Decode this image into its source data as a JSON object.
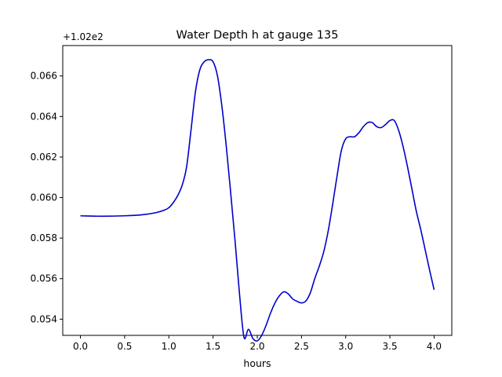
{
  "chart_data": {
    "type": "line",
    "title": "Water Depth h at gauge 135",
    "xlabel": "hours",
    "ylabel": "",
    "offset_label": "+1.02e2",
    "xlim": [
      -0.2,
      4.2
    ],
    "ylim": [
      0.0532,
      0.0675
    ],
    "x_ticks": [
      0.0,
      0.5,
      1.0,
      1.5,
      2.0,
      2.5,
      3.0,
      3.5,
      4.0
    ],
    "x_tick_labels": [
      "0.0",
      "0.5",
      "1.0",
      "1.5",
      "2.0",
      "2.5",
      "3.0",
      "3.5",
      "4.0"
    ],
    "y_ticks": [
      0.054,
      0.056,
      0.058,
      0.06,
      0.062,
      0.064,
      0.066
    ],
    "y_tick_labels": [
      "0.054",
      "0.056",
      "0.058",
      "0.060",
      "0.062",
      "0.064",
      "0.066"
    ],
    "grid": false,
    "legend": "none",
    "series": [
      {
        "color": "#0000cc",
        "x": [
          0.0,
          0.25,
          0.5,
          0.7,
          0.85,
          0.95,
          1.0,
          1.05,
          1.1,
          1.15,
          1.2,
          1.25,
          1.3,
          1.35,
          1.4,
          1.45,
          1.5,
          1.55,
          1.6,
          1.65,
          1.7,
          1.75,
          1.8,
          1.85,
          1.9,
          1.95,
          2.0,
          2.05,
          2.1,
          2.15,
          2.2,
          2.25,
          2.3,
          2.35,
          2.4,
          2.45,
          2.5,
          2.55,
          2.6,
          2.65,
          2.7,
          2.75,
          2.8,
          2.85,
          2.9,
          2.95,
          3.0,
          3.05,
          3.1,
          3.15,
          3.2,
          3.25,
          3.3,
          3.35,
          3.4,
          3.45,
          3.5,
          3.55,
          3.6,
          3.65,
          3.7,
          3.75,
          3.8,
          3.85,
          3.9,
          3.95,
          4.0
        ],
        "y": [
          0.0591,
          0.05908,
          0.0591,
          0.05915,
          0.05925,
          0.05938,
          0.0595,
          0.05975,
          0.0601,
          0.0606,
          0.0615,
          0.0633,
          0.0652,
          0.0663,
          0.0667,
          0.0668,
          0.0667,
          0.066,
          0.0645,
          0.0625,
          0.0602,
          0.0578,
          0.0552,
          0.0531,
          0.0535,
          0.05305,
          0.05293,
          0.0532,
          0.0537,
          0.0543,
          0.0548,
          0.05515,
          0.05535,
          0.05525,
          0.055,
          0.05488,
          0.0548,
          0.0549,
          0.0553,
          0.056,
          0.0566,
          0.0573,
          0.0583,
          0.0596,
          0.061,
          0.0623,
          0.0629,
          0.063,
          0.063,
          0.0632,
          0.0635,
          0.0637,
          0.0637,
          0.0635,
          0.06345,
          0.0636,
          0.0638,
          0.0638,
          0.0633,
          0.0625,
          0.0615,
          0.0604,
          0.0593,
          0.0584,
          0.0574,
          0.0564,
          0.05545
        ]
      }
    ]
  }
}
